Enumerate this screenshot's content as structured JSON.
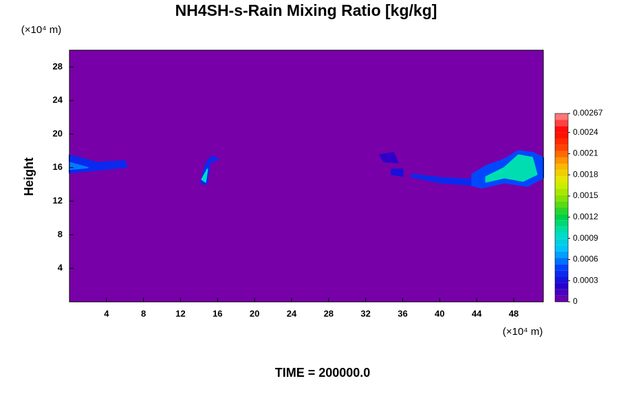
{
  "chart_data": {
    "type": "contour",
    "title": "NH4SH-s-Rain Mixing Ratio [kg/kg]",
    "xunit": "(×10⁴ m)",
    "yunit": "(×10⁴ m)",
    "ylabel": "Height",
    "footer": "TIME = 200000.0",
    "xlim": [
      0,
      51.2
    ],
    "ylim": [
      0,
      30
    ],
    "xticks": [
      4,
      8,
      12,
      16,
      20,
      24,
      28,
      32,
      36,
      40,
      44,
      48
    ],
    "yticks": [
      4,
      8,
      12,
      16,
      20,
      24,
      28
    ],
    "clim": [
      0,
      0.00267
    ],
    "cticks": [
      0,
      0.0003,
      0.0006,
      0.0009,
      0.0012,
      0.0015,
      0.0018,
      0.0021,
      0.0024,
      0.00267
    ],
    "colormap": [
      "#7800a8",
      "#2000d0",
      "#0040ff",
      "#00c0ff",
      "#00e0c0",
      "#00d040",
      "#80e000",
      "#e0f000",
      "#ffb000",
      "#ff4000",
      "#ff0000",
      "#ff9090"
    ],
    "features": [
      {
        "x": [
          0,
          3,
          6,
          6.2,
          3,
          0
        ],
        "y": [
          17.5,
          16.6,
          16.8,
          16.1,
          15.7,
          15.4
        ],
        "value": 0.0004
      },
      {
        "x": [
          0,
          2,
          0
        ],
        "y": [
          16.6,
          16.0,
          15.8
        ],
        "value": 0.0006
      },
      {
        "x": [
          14.2,
          14.8,
          15.2,
          16.1,
          15.4,
          14.7
        ],
        "y": [
          14.2,
          14.0,
          16.6,
          17.0,
          17.4,
          16.4
        ],
        "value": 0.0004
      },
      {
        "x": [
          14.3,
          14.7,
          14.9
        ],
        "y": [
          14.6,
          14.3,
          15.8
        ],
        "value": 0.0009
      },
      {
        "x": [
          33.5,
          35,
          35.5,
          34
        ],
        "y": [
          17.5,
          17.8,
          16.6,
          16.7
        ],
        "value": 0.0002
      },
      {
        "x": [
          34.8,
          36,
          36,
          34.8
        ],
        "y": [
          15.8,
          15.8,
          15.0,
          15.2
        ],
        "value": 0.0003
      },
      {
        "x": [
          37,
          40,
          43.5,
          43.5,
          40,
          37
        ],
        "y": [
          15.2,
          14.8,
          14.6,
          13.9,
          14.2,
          14.9
        ],
        "value": 0.0004
      },
      {
        "x": [
          43.5,
          45,
          47,
          48.5,
          50,
          51.2,
          51.2,
          49.5,
          47,
          44.5,
          43.5
        ],
        "y": [
          15.2,
          16.2,
          17.0,
          18.0,
          17.8,
          17.2,
          14.8,
          13.8,
          14.2,
          13.6,
          13.9
        ],
        "value": 0.0005
      },
      {
        "x": [
          45,
          47,
          48.5,
          50,
          50.5,
          49,
          47,
          45
        ],
        "y": [
          14.9,
          16.0,
          17.5,
          17.2,
          15.2,
          14.4,
          14.8,
          14.3
        ],
        "value": 0.001
      }
    ]
  }
}
